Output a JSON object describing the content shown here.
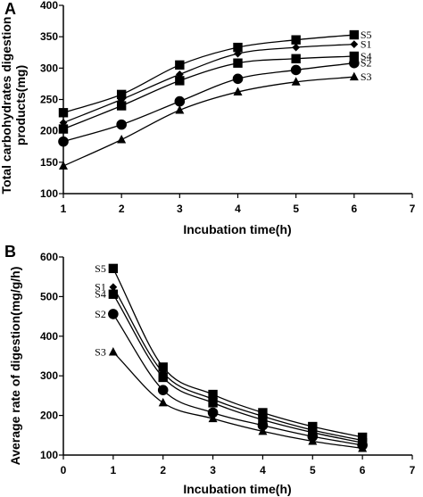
{
  "chart_data": [
    {
      "panel": "A",
      "type": "line",
      "xlabel": "Incubation time(h)",
      "ylabel_lines": [
        "Total carbohydrates digestion",
        "products(mg)"
      ],
      "xlim": [
        1,
        7
      ],
      "ylim": [
        100,
        400
      ],
      "xticks": [
        "1",
        "2",
        "3",
        "4",
        "5",
        "6",
        "7"
      ],
      "yticks": [
        "100",
        "150",
        "200",
        "250",
        "300",
        "350",
        "400"
      ],
      "grid": false,
      "legend": "series labels at right end of lines",
      "x": [
        1,
        2,
        3,
        4,
        5,
        6
      ],
      "series": [
        {
          "name": "S5",
          "marker": "square",
          "values": [
            229,
            258,
            305,
            333,
            345,
            353
          ]
        },
        {
          "name": "S1",
          "marker": "diamond",
          "values": [
            213,
            250,
            290,
            323,
            333,
            338
          ]
        },
        {
          "name": "S4",
          "marker": "square",
          "values": [
            203,
            240,
            280,
            308,
            315,
            319
          ]
        },
        {
          "name": "S2",
          "marker": "circle",
          "values": [
            183,
            210,
            247,
            283,
            297,
            308
          ]
        },
        {
          "name": "S3",
          "marker": "triangle",
          "values": [
            144,
            186,
            233,
            262,
            278,
            286
          ]
        }
      ]
    },
    {
      "panel": "B",
      "type": "line",
      "xlabel": "Incubation time(h)",
      "ylabel_lines": [
        "Average rate of digestion(mg/g/h)"
      ],
      "xlim": [
        0,
        7
      ],
      "ylim": [
        100,
        600
      ],
      "xticks": [
        "0",
        "1",
        "2",
        "3",
        "4",
        "5",
        "6",
        "7"
      ],
      "yticks": [
        "100",
        "200",
        "300",
        "400",
        "500",
        "600"
      ],
      "grid": false,
      "legend": "series labels at left start of lines",
      "x": [
        1,
        2,
        3,
        4,
        5,
        6
      ],
      "series": [
        {
          "name": "S5",
          "marker": "square",
          "values": [
            571,
            322,
            253,
            207,
            172,
            145
          ]
        },
        {
          "name": "S1",
          "marker": "diamond",
          "values": [
            524,
            308,
            241,
            198,
            163,
            137
          ]
        },
        {
          "name": "S4",
          "marker": "square",
          "values": [
            506,
            296,
            232,
            189,
            157,
            131
          ]
        },
        {
          "name": "S2",
          "marker": "circle",
          "values": [
            456,
            264,
            207,
            175,
            147,
            125
          ]
        },
        {
          "name": "S3",
          "marker": "triangle",
          "values": [
            360,
            232,
            192,
            160,
            135,
            117
          ]
        }
      ]
    }
  ]
}
